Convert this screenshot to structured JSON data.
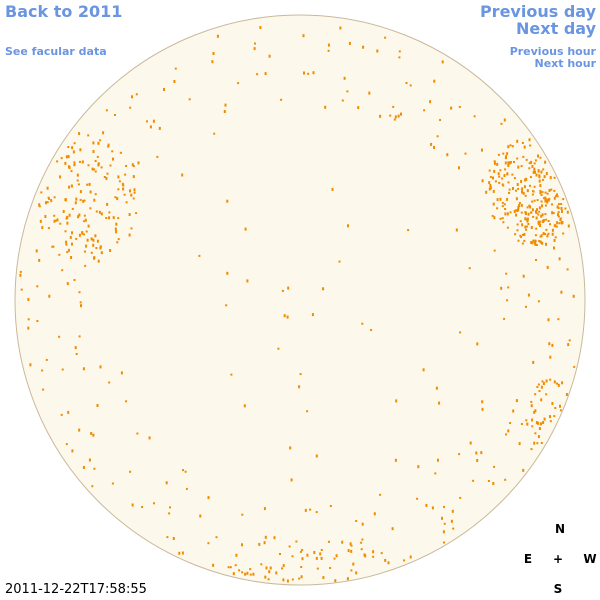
{
  "nav": {
    "back_to_year": "Back to 2011",
    "facular_link": "See facular data",
    "previous_day": "Previous day",
    "next_day": "Next day",
    "previous_hour": "Previous hour",
    "next_hour": "Next hour"
  },
  "timestamp": "2011-12-22T17:58:55",
  "compass": {
    "n": "N",
    "e": "E",
    "center": "+",
    "w": "W",
    "s": "S"
  }
}
